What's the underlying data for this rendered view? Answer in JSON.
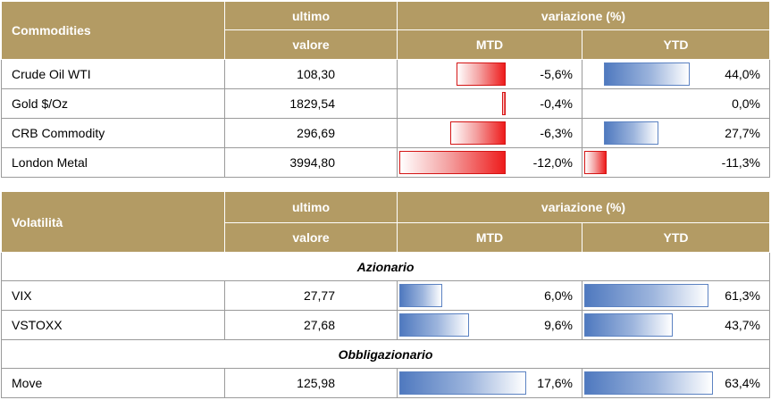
{
  "colors": {
    "header_bg": "#b39b64",
    "header_text": "#ffffff",
    "negative_bar": "#ee1c1c",
    "positive_bar": "#4f79bf"
  },
  "chart_data": [
    {
      "type": "table",
      "title": "Commodities",
      "headers": {
        "first": "Commodities",
        "ultimo_top": "ultimo",
        "ultimo_bottom": "valore",
        "variazione": "variazione (%)",
        "mtd": "MTD",
        "ytd": "YTD"
      },
      "max_abs_pct": 12.0,
      "rows": [
        {
          "name": "Crude Oil WTI",
          "value": "108,30",
          "mtd": -5.6,
          "mtd_label": "-5,6%",
          "ytd": 44.0,
          "ytd_label": "44,0%"
        },
        {
          "name": "Gold $/Oz",
          "value": "1829,54",
          "mtd": -0.4,
          "mtd_label": "-0,4%",
          "ytd": 0.0,
          "ytd_label": "0,0%"
        },
        {
          "name": "CRB Commodity",
          "value": "296,69",
          "mtd": -6.3,
          "mtd_label": "-6,3%",
          "ytd": 27.7,
          "ytd_label": "27,7%"
        },
        {
          "name": "London Metal",
          "value": "3994,80",
          "mtd": -12.0,
          "mtd_label": "-12,0%",
          "ytd": -11.3,
          "ytd_label": "-11,3%"
        }
      ]
    },
    {
      "type": "table",
      "title": "Volatilità",
      "headers": {
        "first": "Volatilità",
        "ultimo_top": "ultimo",
        "ultimo_bottom": "valore",
        "variazione": "variazione (%)",
        "mtd": "MTD",
        "ytd": "YTD"
      },
      "sections": [
        {
          "name": "Azionario",
          "rows": [
            {
              "name": "VIX",
              "value": "27,77",
              "mtd": 6.0,
              "mtd_label": "6,0%",
              "ytd": 61.3,
              "ytd_label": "61,3%"
            },
            {
              "name": "VSTOXX",
              "value": "27,68",
              "mtd": 9.6,
              "mtd_label": "9,6%",
              "ytd": 43.7,
              "ytd_label": "43,7%"
            }
          ]
        },
        {
          "name": "Obbligazionario",
          "rows": [
            {
              "name": "Move",
              "value": "125,98",
              "mtd": 17.6,
              "mtd_label": "17,6%",
              "ytd": 63.4,
              "ytd_label": "63,4%"
            }
          ]
        }
      ]
    }
  ]
}
